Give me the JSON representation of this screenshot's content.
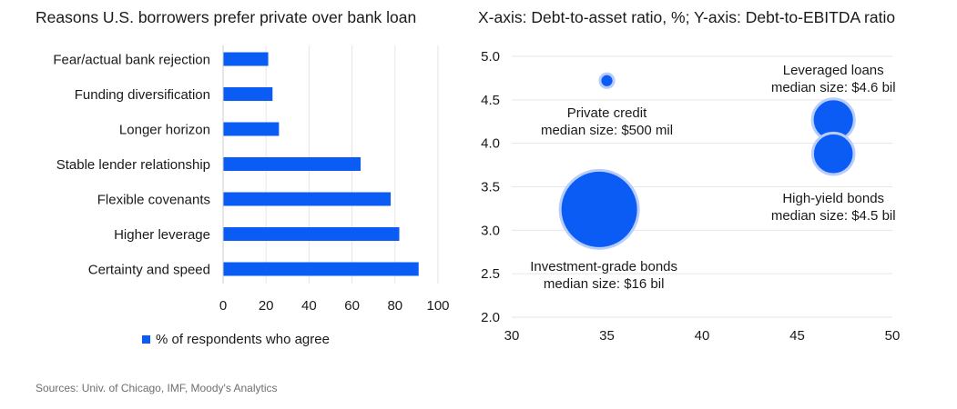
{
  "sources": "Sources: Univ. of Chicago, IMF, Moody's Analytics",
  "colors": {
    "accent": "#0a5cf5",
    "grid": "#e6e6e6",
    "axis": "#cccccc"
  },
  "chart_data": [
    {
      "type": "bar",
      "orientation": "horizontal",
      "title": "Reasons U.S. borrowers prefer private over bank loan",
      "categories": [
        "Fear/actual bank rejection",
        "Funding diversification",
        "Longer horizon",
        "Stable lender relationship",
        "Flexible covenants",
        "Higher leverage",
        "Certainty and speed"
      ],
      "series": [
        {
          "name": "% of respondents who agree",
          "values": [
            21,
            23,
            26,
            64,
            78,
            82,
            91
          ]
        }
      ],
      "xlim": [
        0,
        100
      ],
      "xticks": [
        "0",
        "20",
        "40",
        "60",
        "80",
        "100"
      ],
      "grid": "vertical",
      "legend": "bottom"
    },
    {
      "type": "scatter",
      "subtype": "bubble",
      "title": "X-axis: Debt-to-asset ratio, %; Y-axis: Debt-to-EBITDA ratio",
      "xlim": [
        30,
        50
      ],
      "ylim": [
        2.0,
        5.0
      ],
      "xticks": [
        "30",
        "35",
        "40",
        "45",
        "50"
      ],
      "yticks": [
        "5.0",
        "4.5",
        "4.0",
        "3.5",
        "3.0",
        "2.5",
        "2.0"
      ],
      "grid": "horizontal",
      "points": [
        {
          "line1": "Private credit",
          "line2": "median size: $500 mil",
          "x": 35.0,
          "y": 4.72,
          "size_bil": 0.5
        },
        {
          "line1": "Leveraged loans",
          "line2": "median size: $4.6 bil",
          "x": 46.9,
          "y": 4.27,
          "size_bil": 4.6
        },
        {
          "line1": "High-yield bonds",
          "line2": "median size: $4.5 bil",
          "x": 46.9,
          "y": 3.88,
          "size_bil": 4.5
        },
        {
          "line1": "Investment-grade bonds",
          "line2": "median size: $16 bil",
          "x": 34.6,
          "y": 3.24,
          "size_bil": 16
        }
      ]
    }
  ]
}
